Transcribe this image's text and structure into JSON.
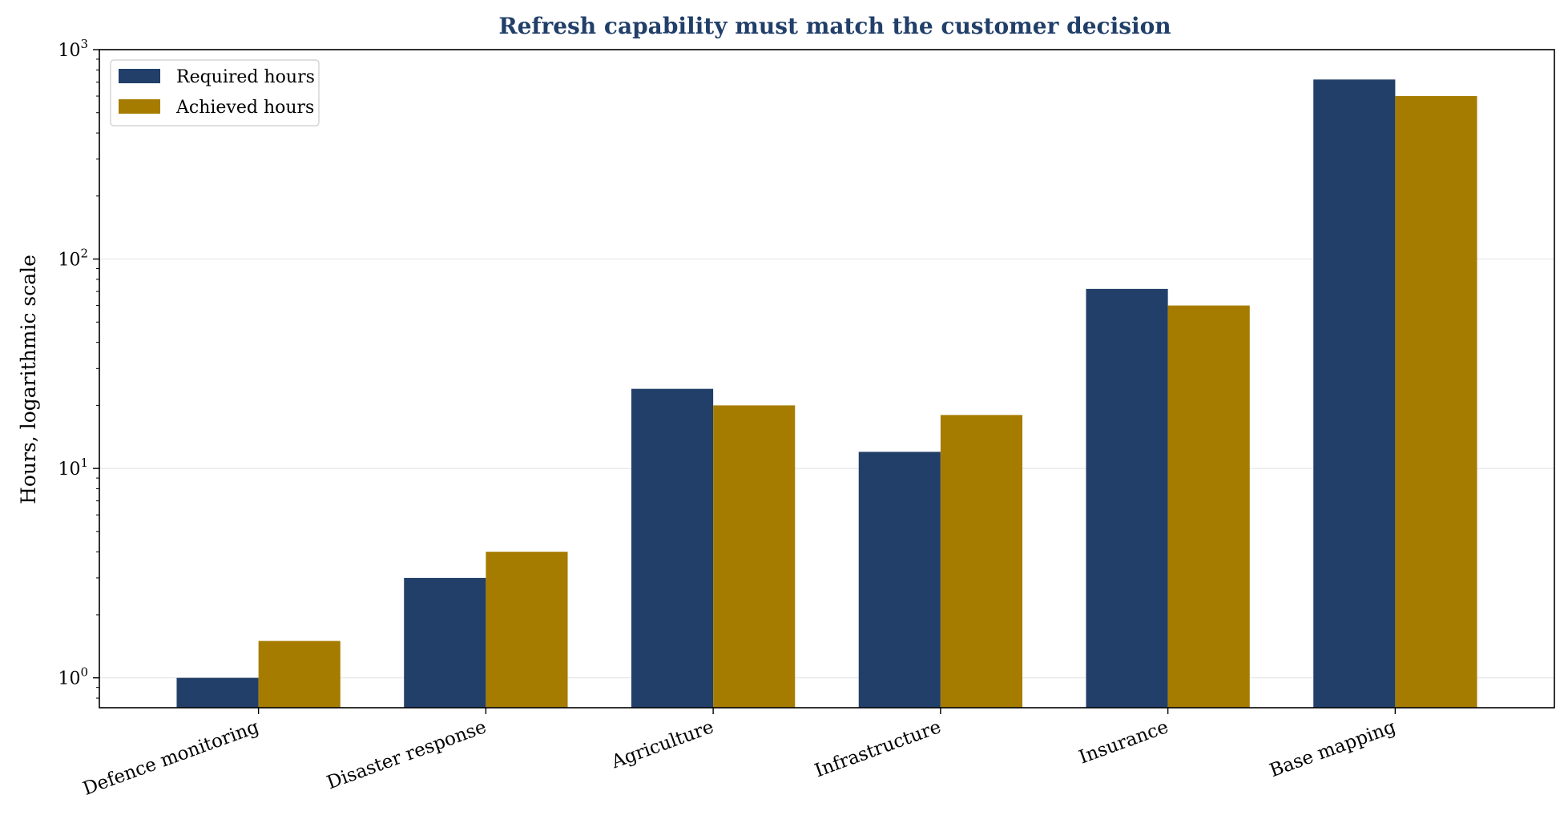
{
  "chart_data": {
    "type": "bar",
    "title": "Refresh capability must match the customer decision",
    "xlabel": "",
    "ylabel": "Hours, logarithmic scale",
    "yscale": "log",
    "ylim": [
      0.72,
      1000
    ],
    "yticks": [
      {
        "value": 1,
        "base": "10",
        "exp": "0"
      },
      {
        "value": 10,
        "base": "10",
        "exp": "1"
      },
      {
        "value": 100,
        "base": "10",
        "exp": "2"
      },
      {
        "value": 1000,
        "base": "10",
        "exp": "3"
      }
    ],
    "grid": "horizontal",
    "legend_position": "top-left",
    "categories": [
      "Defence monitoring",
      "Disaster response",
      "Agriculture",
      "Infrastructure",
      "Insurance",
      "Base mapping"
    ],
    "series": [
      {
        "name": "Required hours",
        "color": "#213f69",
        "values": [
          1,
          3,
          24,
          12,
          72,
          720
        ]
      },
      {
        "name": "Achieved hours",
        "color": "#a67c00",
        "values": [
          1.5,
          4,
          20,
          18,
          60,
          600
        ]
      }
    ],
    "title_color": "#213f69"
  }
}
